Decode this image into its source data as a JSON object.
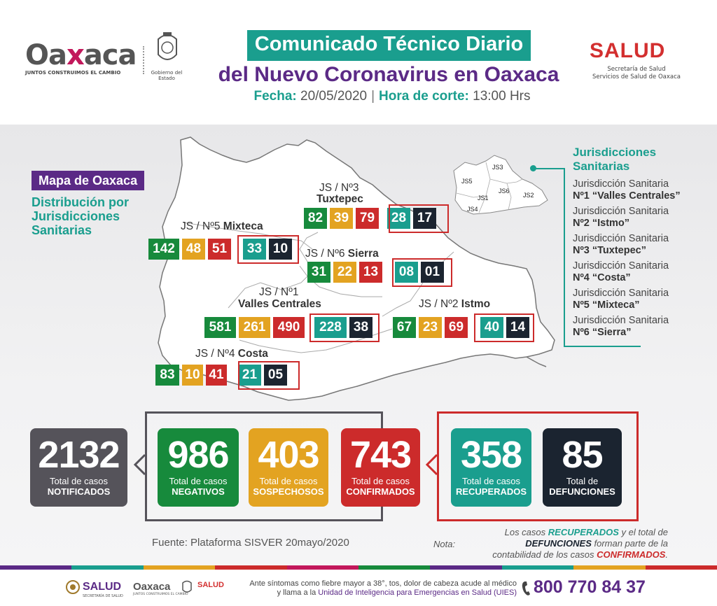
{
  "header": {
    "logo_left": {
      "brand_a": "Oa",
      "brand_x": "x",
      "brand_b": "aca",
      "tagline": "JUNTOS CONSTRUIMOS EL CAMBIO",
      "seal_caption": "Gobierno del Estado"
    },
    "title_line1": "Comunicado Técnico Diario",
    "title_line2": "del Nuevo Coronavirus en Oaxaca",
    "fecha_label": "Fecha:",
    "fecha_value": "20/05/2020",
    "hora_label": "Hora de corte:",
    "hora_value": "13:00 Hrs",
    "logo_right": {
      "name": "SALUD",
      "sub1": "Secretaría de Salud",
      "sub2": "Servicios de Salud de Oaxaca"
    }
  },
  "map": {
    "label": "Mapa de Oaxaca",
    "subtitle": "Distribución por Jurisdicciones Sanitarias",
    "inset_labels": [
      "JS3",
      "JS5",
      "JS6",
      "JS1",
      "JS2",
      "JS4"
    ],
    "jurisdictions": [
      {
        "prefix": "JS / Nº3",
        "name": "Tuxtepec",
        "values": [
          "82",
          "39",
          "79",
          "28",
          "17"
        ]
      },
      {
        "prefix": "JS / Nº5",
        "name": "Mixteca",
        "values": [
          "142",
          "48",
          "51",
          "33",
          "10"
        ]
      },
      {
        "prefix": "JS / Nº6",
        "name": "Sierra",
        "values": [
          "31",
          "22",
          "13",
          "08",
          "01"
        ]
      },
      {
        "prefix": "JS / Nº1",
        "name": "Valles Centrales",
        "values": [
          "581",
          "261",
          "490",
          "228",
          "38"
        ]
      },
      {
        "prefix": "JS / Nº2",
        "name": "Istmo",
        "values": [
          "67",
          "23",
          "69",
          "40",
          "14"
        ]
      },
      {
        "prefix": "JS / Nº4",
        "name": "Costa",
        "values": [
          "83",
          "10",
          "41",
          "21",
          "05"
        ]
      }
    ]
  },
  "legend": {
    "title_line1": "Jurisdicciones",
    "title_line2": "Sanitarias",
    "items": [
      {
        "line1": "Jurisdicción Sanitaria",
        "line2": "Nº1 “Valles Centrales”"
      },
      {
        "line1": "Jurisdicción Sanitaria",
        "line2": "Nº2 “Istmo”"
      },
      {
        "line1": "Jurisdicción Sanitaria",
        "line2": "Nº3 “Tuxtepec”"
      },
      {
        "line1": "Jurisdicción Sanitaria",
        "line2": "Nº4 “Costa”"
      },
      {
        "line1": "Jurisdicción Sanitaria",
        "line2": "Nº5 “Mixteca”"
      },
      {
        "line1": "Jurisdicción Sanitaria",
        "line2": "Nº6 “Sierra”"
      }
    ]
  },
  "totals": {
    "notificados": {
      "value": "2132",
      "line1": "Total de casos",
      "line2": "NOTIFICADOS"
    },
    "negativos": {
      "value": "986",
      "line1": "Total de casos",
      "line2": "NEGATIVOS"
    },
    "sospechosos": {
      "value": "403",
      "line1": "Total de casos",
      "line2": "SOSPECHOSOS"
    },
    "confirmados": {
      "value": "743",
      "line1": "Total de casos",
      "line2": "CONFIRMADOS"
    },
    "recuperados": {
      "value": "358",
      "line1": "Total de casos",
      "line2": "RECUPERADOS"
    },
    "defunciones": {
      "value": "85",
      "line1": "Total de",
      "line2": "DEFUNCIONES"
    }
  },
  "fuente": "Fuente: Plataforma SISVER 20mayo/2020",
  "nota": {
    "label": "Nota:",
    "p1": "Los casos ",
    "recuperados": "RECUPERADOS",
    "p2": " y el total de",
    "defunciones": "DEFUNCIONES",
    "p3": " forman parte de la",
    "p4": "contabilidad de los casos ",
    "confirmados": "CONFIRMADOS",
    "p5": "."
  },
  "colors": {
    "green": "#178a3c",
    "yellow": "#e3a321",
    "red": "#cc2b2b",
    "teal": "#1a9e8e",
    "black": "#1b2430",
    "purple": "#5b2a86",
    "gray": "#55535a"
  },
  "footer": {
    "salud": "SALUD",
    "salud_sub": "SECRETARÍA DE SALUD",
    "oaxaca": "Oaxaca",
    "oaxaca_sub": "JUNTOS CONSTRUIMOS EL CAMBIO",
    "salud2": "SALUD",
    "line1": "Ante síntomas como fiebre mayor a 38°, tos, dolor de cabeza acude al médico",
    "line2a": "y llama a la ",
    "line2b": "Unidad de Inteligencia para Emergencias en Salud (UIES)",
    "phone": "800 770 84 37",
    "phone_icon": "phone-icon"
  }
}
